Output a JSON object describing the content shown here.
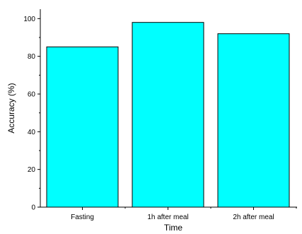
{
  "chart_data": {
    "type": "bar",
    "categories": [
      "Fasting",
      "1h after meal",
      "2h after meal"
    ],
    "values": [
      85,
      98,
      92
    ],
    "title": "",
    "xlabel": "Time",
    "ylabel": "Accuracy (%)",
    "ylim": [
      0,
      105
    ],
    "yticks": [
      "0",
      "20",
      "40",
      "60",
      "80",
      "100"
    ],
    "grid": false,
    "legend": "none",
    "colors": {
      "bar_fill": "#00FFFF",
      "bar_stroke": "#000000",
      "axis": "#000000"
    }
  }
}
